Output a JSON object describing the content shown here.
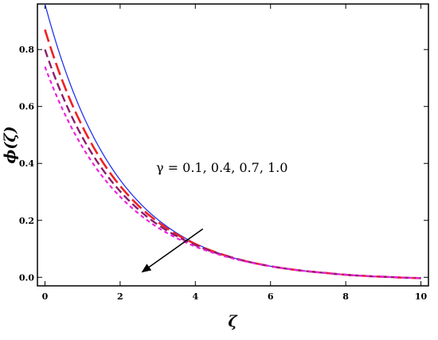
{
  "chart_data": {
    "type": "line",
    "xlabel": "ζ",
    "ylabel": "ϕ(ζ)",
    "xlim": [
      -0.2,
      10.2
    ],
    "ylim": [
      -0.03,
      0.96
    ],
    "x_ticks": [
      0,
      2,
      4,
      6,
      8,
      10
    ],
    "y_ticks": [
      0.0,
      0.2,
      0.4,
      0.6,
      0.8
    ],
    "x_tick_labels": [
      "0",
      "2",
      "4",
      "6",
      "8",
      "10"
    ],
    "y_tick_labels": [
      "0.0",
      "0.2",
      "0.4",
      "0.6",
      "0.8"
    ],
    "grid": false,
    "annotation": {
      "text": "γ = 0.1, 0.4, 0.7, 1.0",
      "arrow_from": [
        4.2,
        0.17
      ],
      "arrow_to": [
        2.6,
        0.02
      ]
    },
    "x": [
      0,
      0.5,
      1,
      1.5,
      2,
      2.5,
      3,
      3.5,
      4,
      4.5,
      5,
      5.5,
      6,
      6.5,
      7,
      7.5,
      8,
      8.5,
      9,
      9.5,
      10
    ],
    "series": [
      {
        "color": "#2233ee",
        "dash": "solid",
        "values": [
          0.96,
          0.742,
          0.573,
          0.443,
          0.342,
          0.264,
          0.203,
          0.156,
          0.119,
          0.091,
          0.069,
          0.052,
          0.039,
          0.029,
          0.021,
          0.015,
          0.009,
          0.005,
          0.002,
          -0.001,
          -0.003
        ]
      },
      {
        "color": "#ee2222",
        "dash": "long-dash",
        "values": [
          0.87,
          0.678,
          0.529,
          0.412,
          0.321,
          0.25,
          0.195,
          0.151,
          0.117,
          0.09,
          0.069,
          0.052,
          0.039,
          0.029,
          0.021,
          0.015,
          0.009,
          0.005,
          0.002,
          -0.001,
          -0.003
        ]
      },
      {
        "color": "#8a1e6e",
        "dash": "dash",
        "values": [
          0.8,
          0.627,
          0.491,
          0.385,
          0.302,
          0.237,
          0.185,
          0.145,
          0.113,
          0.088,
          0.068,
          0.052,
          0.039,
          0.029,
          0.021,
          0.015,
          0.009,
          0.005,
          0.002,
          -0.001,
          -0.003
        ]
      },
      {
        "color": "#ee22dd",
        "dash": "short-dash",
        "values": [
          0.74,
          0.581,
          0.457,
          0.359,
          0.283,
          0.223,
          0.175,
          0.138,
          0.108,
          0.085,
          0.066,
          0.051,
          0.039,
          0.029,
          0.021,
          0.015,
          0.009,
          0.005,
          0.002,
          -0.001,
          -0.003
        ]
      }
    ]
  }
}
